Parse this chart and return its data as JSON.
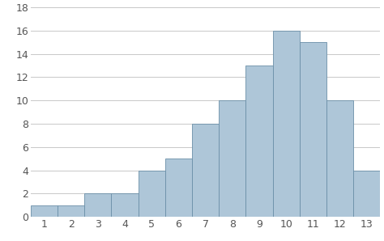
{
  "categories": [
    1,
    2,
    3,
    4,
    5,
    6,
    7,
    8,
    9,
    10,
    11,
    12,
    13
  ],
  "values": [
    1,
    1,
    2,
    2,
    4,
    5,
    8,
    10,
    13,
    16,
    15,
    10,
    4
  ],
  "bar_color": "#aec6d8",
  "bar_edge_color": "#6b8fa8",
  "bar_edge_width": 0.6,
  "ylim": [
    0,
    18
  ],
  "yticks": [
    0,
    2,
    4,
    6,
    8,
    10,
    12,
    14,
    16,
    18
  ],
  "xticks": [
    1,
    2,
    3,
    4,
    5,
    6,
    7,
    8,
    9,
    10,
    11,
    12,
    13
  ],
  "grid_color": "#c8c8c8",
  "grid_linewidth": 0.7,
  "background_color": "#ffffff",
  "tick_fontsize": 9,
  "bar_width": 1.0
}
